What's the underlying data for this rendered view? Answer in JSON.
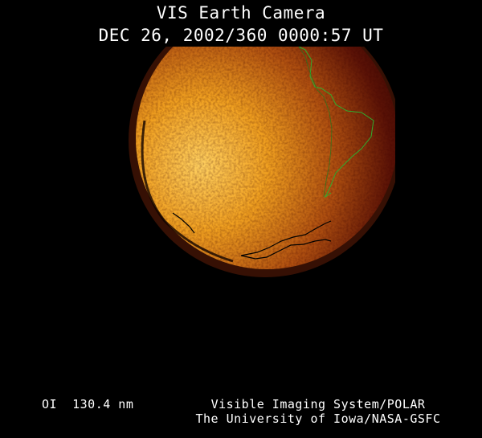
{
  "header": {
    "title": "VIS Earth Camera",
    "timestamp": "DEC 26, 2002/360 0000:57 UT"
  },
  "footer": {
    "band": "OI  130.4 nm",
    "credit_line1": "Visible Imaging System/POLAR",
    "credit_line2": "The University of Iowa/NASA-GSFC"
  },
  "colors": {
    "background": "#000000",
    "dayside": "#f5a623",
    "nightside": "#4a0c05",
    "coastline_north": "#2fae2f",
    "coastline_south": "#000000"
  }
}
